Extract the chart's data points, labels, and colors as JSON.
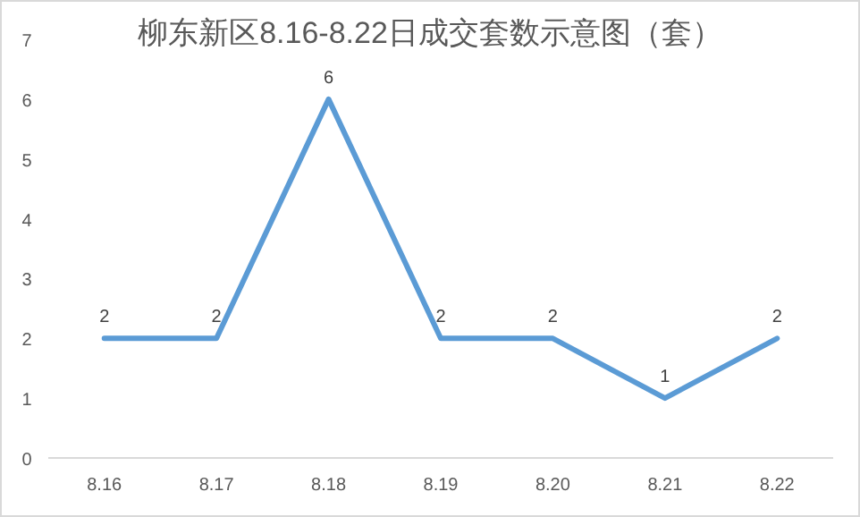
{
  "chart_data": {
    "type": "line",
    "title": "柳东新区8.16-8.22日成交套数示意图（套）",
    "categories": [
      "8.16",
      "8.17",
      "8.18",
      "8.19",
      "8.20",
      "8.21",
      "8.22"
    ],
    "values": [
      2,
      2,
      6,
      2,
      2,
      1,
      2
    ],
    "color": "#5b9bd5",
    "ylim": [
      0,
      7
    ],
    "yticks": [
      0,
      1,
      2,
      3,
      4,
      5,
      6,
      7
    ],
    "data_labels": true,
    "marker": "none",
    "line_style": "solid",
    "grid": false
  }
}
